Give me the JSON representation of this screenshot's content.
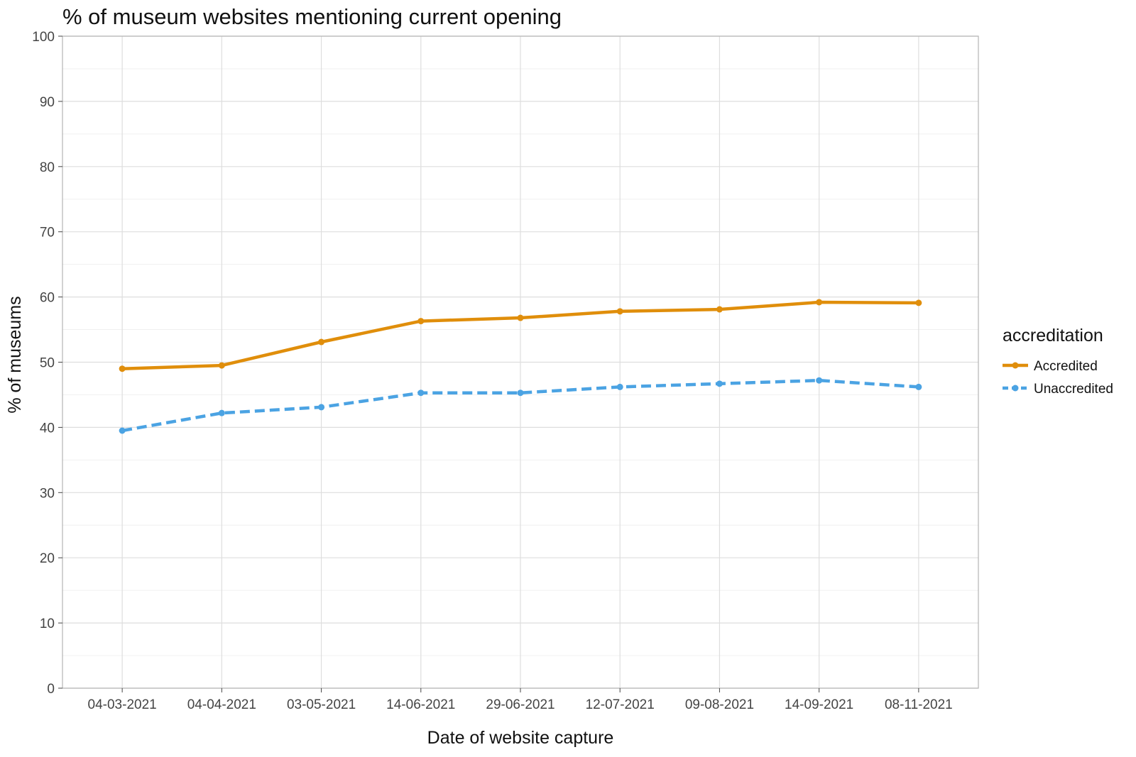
{
  "chart_data": {
    "type": "line",
    "title": "% of museum websites mentioning current opening",
    "xlabel": "Date of website capture",
    "ylabel": "% of museums",
    "categories": [
      "04-03-2021",
      "04-04-2021",
      "03-05-2021",
      "14-06-2021",
      "29-06-2021",
      "12-07-2021",
      "09-08-2021",
      "14-09-2021",
      "08-11-2021"
    ],
    "ylim": [
      0,
      100
    ],
    "yticks": [
      0,
      10,
      20,
      30,
      40,
      50,
      60,
      70,
      80,
      90,
      100
    ],
    "grid": true,
    "legend": {
      "title": "accreditation",
      "position": "right"
    },
    "series": [
      {
        "name": "Accredited",
        "color": "#E08E0B",
        "line_style": "solid",
        "values": [
          49.0,
          49.5,
          53.1,
          56.3,
          56.8,
          57.8,
          58.1,
          59.2,
          59.1
        ]
      },
      {
        "name": "Unaccredited",
        "color": "#4BA3E3",
        "line_style": "dashed",
        "values": [
          39.5,
          42.2,
          43.1,
          45.3,
          45.3,
          46.2,
          46.7,
          47.2,
          46.2
        ]
      }
    ]
  }
}
